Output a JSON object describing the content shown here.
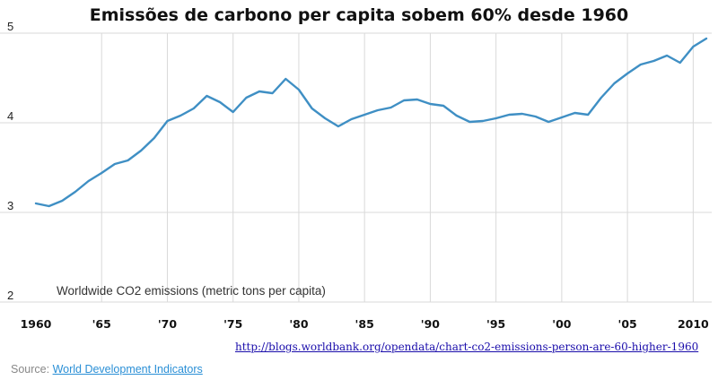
{
  "chart_data": {
    "type": "line",
    "title": "Emissões de carbono per capita sobem 60% desde 1960",
    "annotation": "Worldwide CO2 emissions (metric tons per capita)",
    "xlim": [
      1960,
      2011
    ],
    "ylim": [
      2,
      5
    ],
    "x_ticks": [
      1960,
      1965,
      1970,
      1975,
      1980,
      1985,
      1990,
      1995,
      2000,
      2005,
      2010
    ],
    "x_tick_labels": [
      "1960",
      "'65",
      "'70",
      "'75",
      "'80",
      "'85",
      "'90",
      "'95",
      "'00",
      "'05",
      "2010"
    ],
    "y_ticks": [
      2,
      3,
      4,
      5
    ],
    "y_tick_labels": [
      "2",
      "3",
      "4",
      "5"
    ],
    "grid": "vertical and horizontal",
    "line_color": "#3f8fc4",
    "x": [
      1960,
      1961,
      1962,
      1963,
      1964,
      1965,
      1966,
      1967,
      1968,
      1969,
      1970,
      1971,
      1972,
      1973,
      1974,
      1975,
      1976,
      1977,
      1978,
      1979,
      1980,
      1981,
      1982,
      1983,
      1984,
      1985,
      1986,
      1987,
      1988,
      1989,
      1990,
      1991,
      1992,
      1993,
      1994,
      1995,
      1996,
      1997,
      1998,
      1999,
      2000,
      2001,
      2002,
      2003,
      2004,
      2005,
      2006,
      2007,
      2008,
      2009,
      2010,
      2011
    ],
    "y": [
      3.1,
      3.07,
      3.13,
      3.23,
      3.35,
      3.44,
      3.54,
      3.58,
      3.69,
      3.83,
      4.02,
      4.08,
      4.16,
      4.3,
      4.23,
      4.12,
      4.28,
      4.35,
      4.33,
      4.49,
      4.37,
      4.16,
      4.05,
      3.96,
      4.04,
      4.09,
      4.14,
      4.17,
      4.25,
      4.26,
      4.21,
      4.19,
      4.08,
      4.01,
      4.02,
      4.05,
      4.09,
      4.1,
      4.07,
      4.01,
      4.06,
      4.11,
      4.09,
      4.28,
      4.44,
      4.55,
      4.65,
      4.69,
      4.75,
      4.67,
      4.85,
      4.94
    ]
  },
  "link_text": "http://blogs.worldbank.org/opendata/chart-co2-emissions-person-are-60-higher-1960",
  "source": {
    "label": "Source: ",
    "link": "World Development Indicators"
  }
}
